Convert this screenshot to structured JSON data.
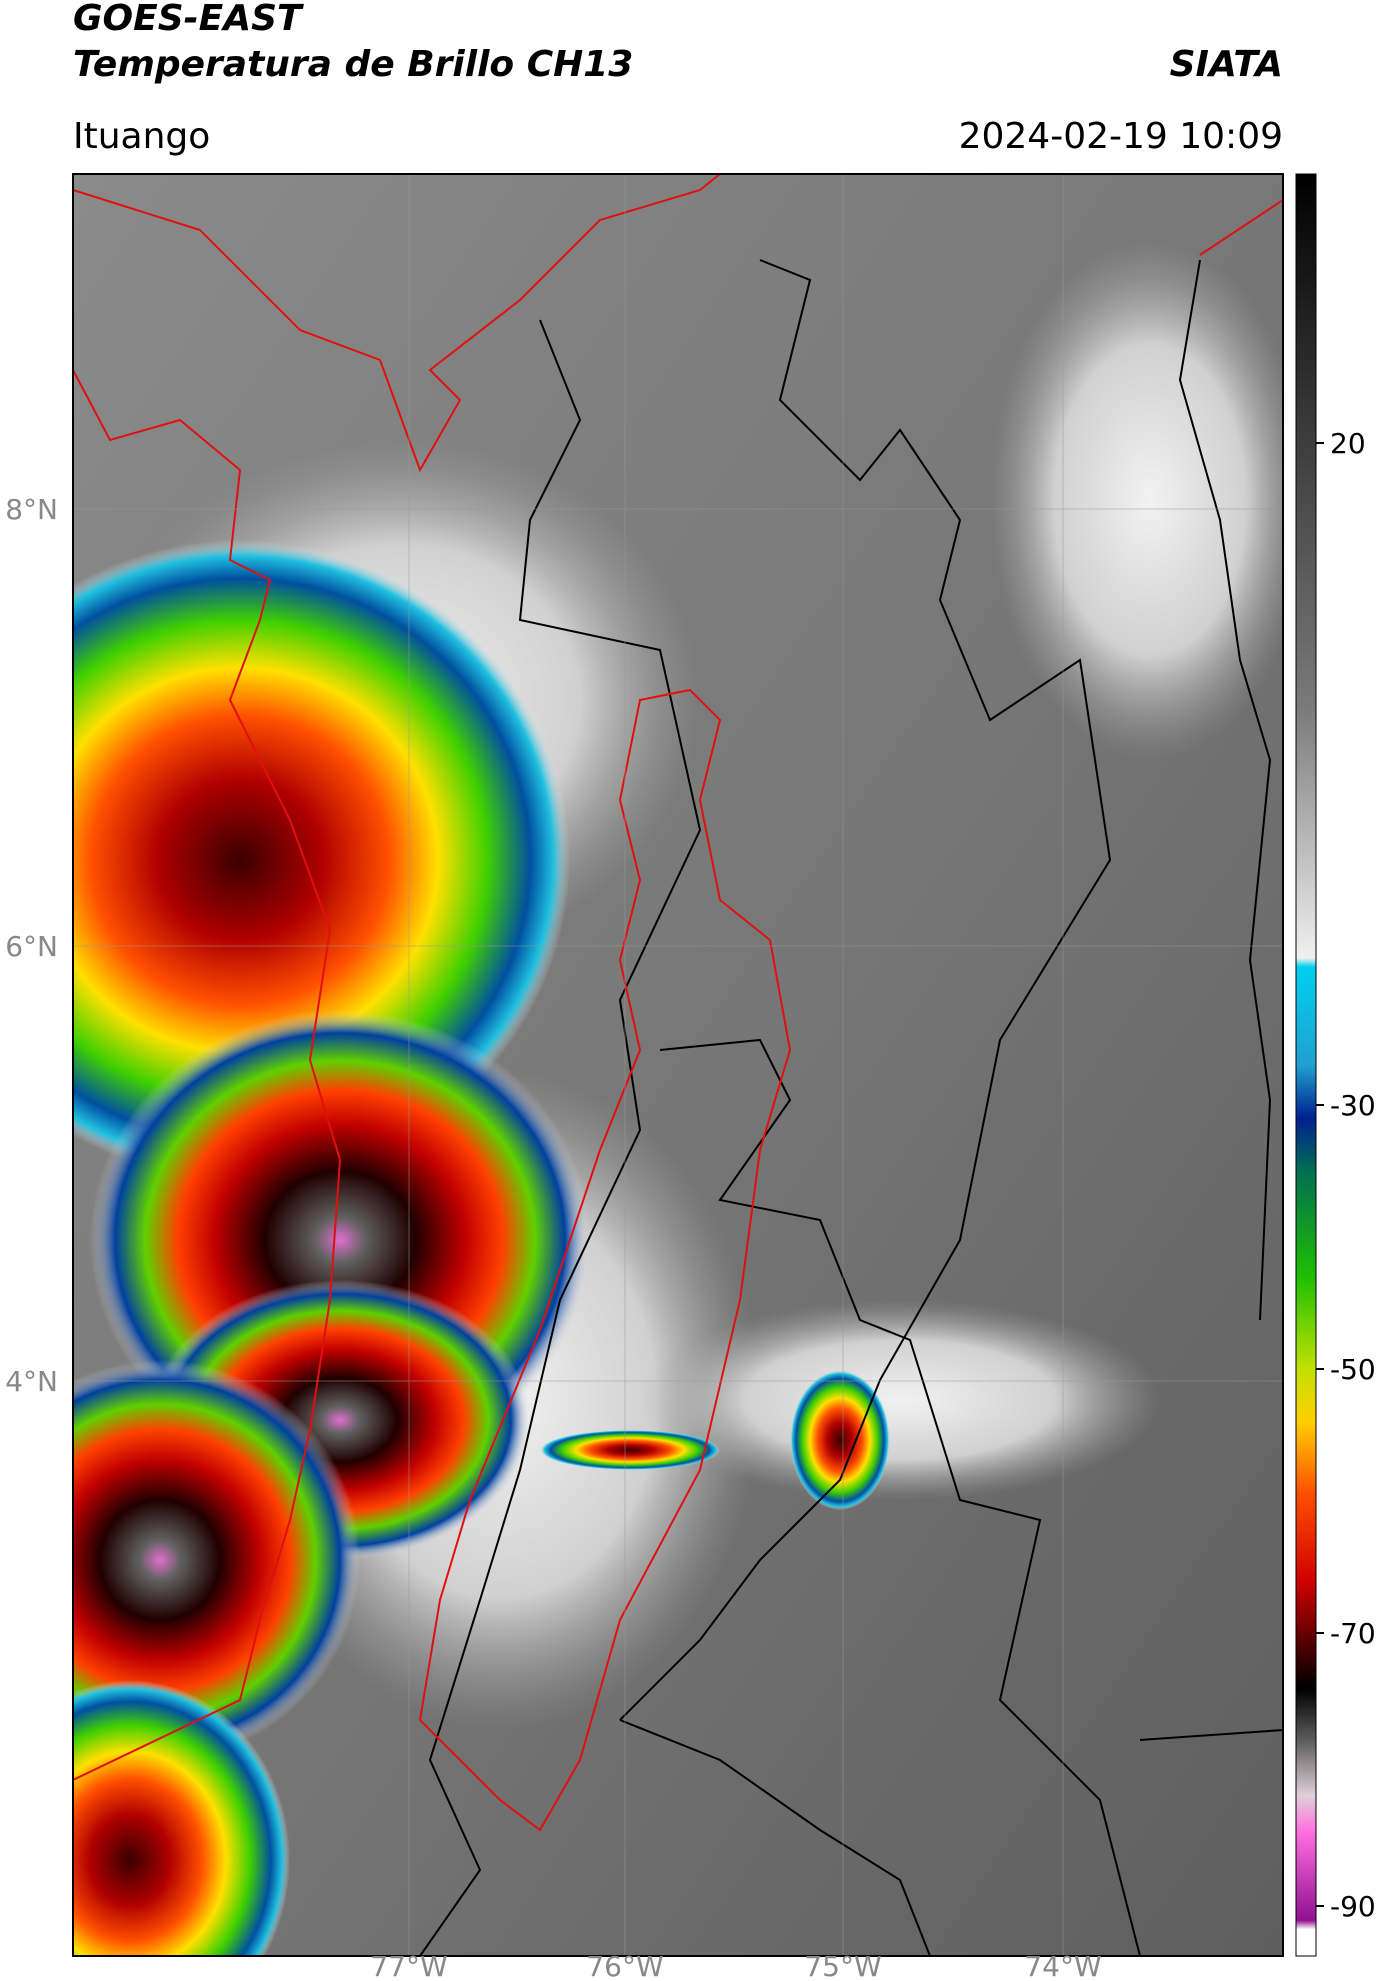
{
  "header": {
    "title": "GOES-EAST",
    "subtitle": "Temperatura de Brillo CH13",
    "source": "SIATA",
    "location": "Ituango",
    "datetime": "2024-02-19 10:09"
  },
  "map": {
    "lat_labels": [
      "8°N",
      "6°N",
      "4°N"
    ],
    "lon_labels": [
      "77°W",
      "76°W",
      "75°W",
      "74°W"
    ]
  },
  "colorbar": {
    "ticks": [
      "20",
      "-30",
      "-50",
      "-70",
      "-90"
    ]
  }
}
